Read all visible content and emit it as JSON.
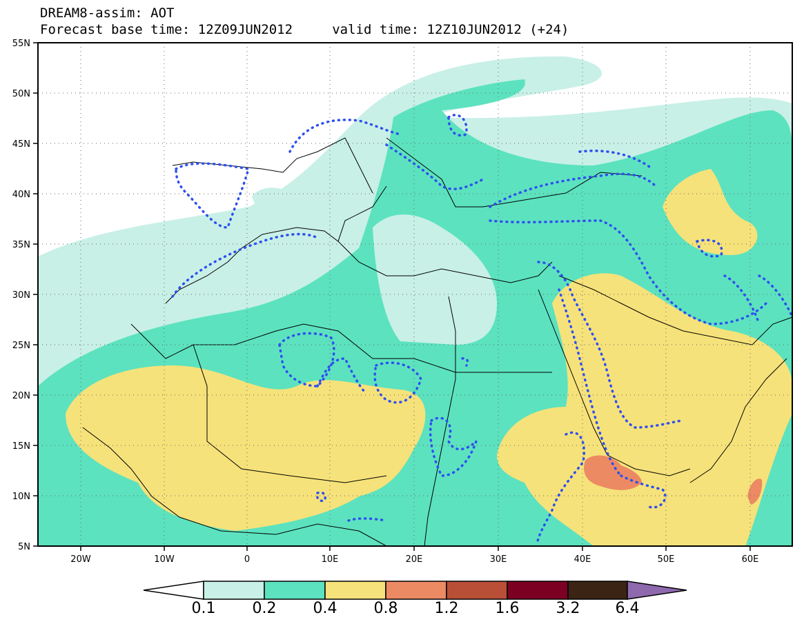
{
  "title_line1": "DREAM8-assim: AOT",
  "title_line2": "Forecast base time: 12Z09JUN2012     valid time: 12Z10JUN2012 (+24)",
  "lat_labels": [
    "55N",
    "50N",
    "45N",
    "40N",
    "35N",
    "30N",
    "25N",
    "20N",
    "15N",
    "10N",
    "5N"
  ],
  "lon_labels": [
    "20W",
    "10W",
    "0",
    "10E",
    "20E",
    "30E",
    "40E",
    "50E",
    "60E"
  ],
  "colorbar": {
    "labels": [
      "0.1",
      "0.2",
      "0.4",
      "0.8",
      "1.2",
      "1.6",
      "3.2",
      "6.4"
    ],
    "colors": [
      "#ffffff",
      "#c8f0e6",
      "#5ce2bf",
      "#f6e27a",
      "#ec8a63",
      "#b84f36",
      "#7c0022",
      "#3c2414",
      "#8e69ad"
    ]
  },
  "map_colors": {
    "low": "#c8f0e6",
    "mid": "#5ce2bf",
    "high": "#f6e27a",
    "peak": "#ec8a63",
    "dotted_contour": "#2e4ff0"
  }
}
